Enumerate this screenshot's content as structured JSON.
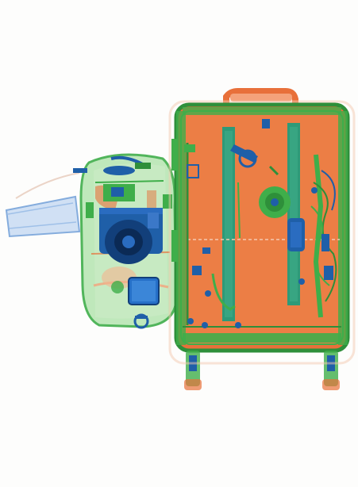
{
  "scene": {
    "background": "#fdfdfc",
    "palette": {
      "organic": "#e8703a",
      "organic_light": "#f4a27a",
      "mixed": "#3fae4a",
      "mixed_light": "#8fd38c",
      "metal": "#1f5fa8",
      "metal_dark": "#123f7a",
      "metal_light": "#6f9fd8",
      "outline": "#2e8f3a"
    },
    "objects": [
      {
        "name": "backpack",
        "material": "mixed"
      },
      {
        "name": "suitcase",
        "material": "organic"
      },
      {
        "name": "camera",
        "material": "metal"
      },
      {
        "name": "handle-strap",
        "material": "metal_light"
      }
    ]
  }
}
